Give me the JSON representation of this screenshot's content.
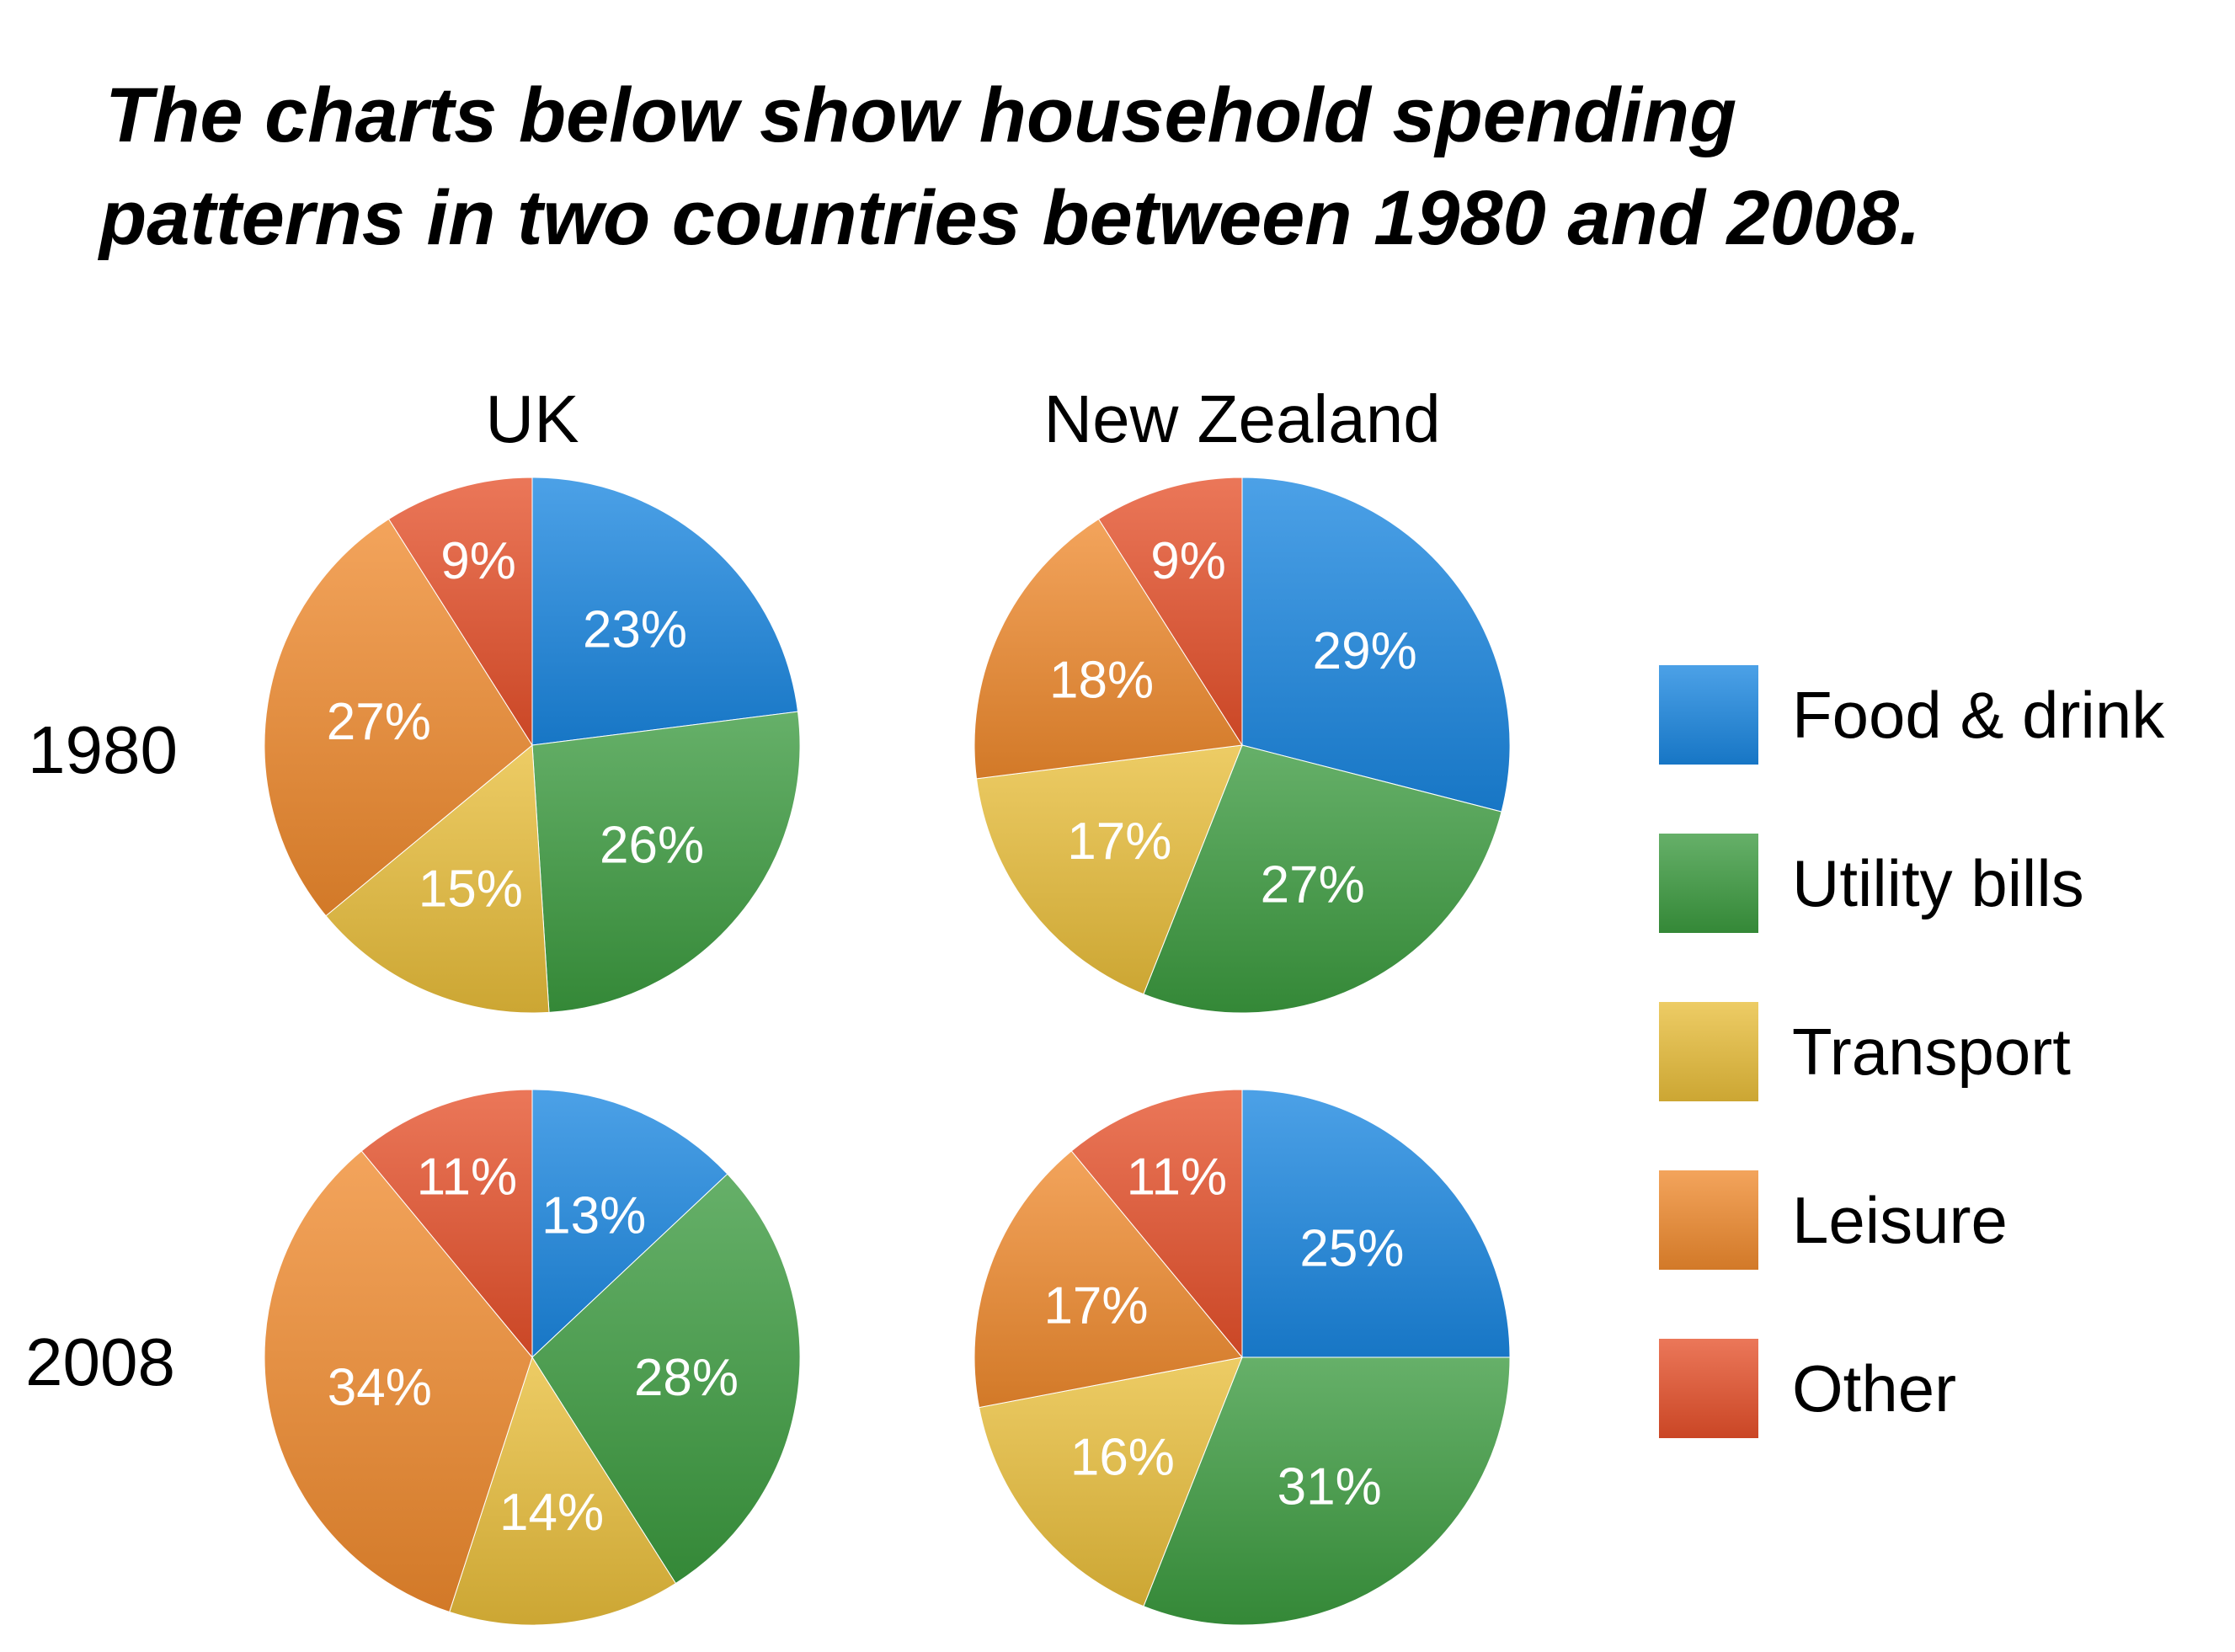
{
  "title": {
    "line1": "The charts below show household spending",
    "line2": "patterns in two countries between 1980 and 2008."
  },
  "categories": [
    "Food & drink",
    "Utility bills",
    "Transport",
    "Leisure",
    "Other"
  ],
  "colors": {
    "Food & drink": "#1a86e0",
    "Utility bills": "#3b9a3f",
    "Transport": "#e8bd3a",
    "Leisure": "#ef8a2e",
    "Other": "#e5502a"
  },
  "col_labels": [
    "UK",
    "New Zealand"
  ],
  "row_labels": [
    "1980",
    "2008"
  ],
  "chart_data": [
    {
      "type": "pie",
      "country": "UK",
      "year": "1980",
      "categories": [
        "Food & drink",
        "Utility bills",
        "Transport",
        "Leisure",
        "Other"
      ],
      "values": [
        23,
        26,
        15,
        27,
        9
      ],
      "labels": [
        "23%",
        "26%",
        "15%",
        "27%",
        "9%"
      ]
    },
    {
      "type": "pie",
      "country": "New Zealand",
      "year": "1980",
      "categories": [
        "Food & drink",
        "Utility bills",
        "Transport",
        "Leisure",
        "Other"
      ],
      "values": [
        29,
        27,
        17,
        18,
        9
      ],
      "labels": [
        "29%",
        "27%",
        "17%",
        "18%",
        "9%"
      ]
    },
    {
      "type": "pie",
      "country": "UK",
      "year": "2008",
      "categories": [
        "Food & drink",
        "Utility bills",
        "Transport",
        "Leisure",
        "Other"
      ],
      "values": [
        13,
        28,
        14,
        34,
        11
      ],
      "labels": [
        "13%",
        "28%",
        "14%",
        "34%",
        "11%"
      ]
    },
    {
      "type": "pie",
      "country": "New Zealand",
      "year": "2008",
      "categories": [
        "Food & drink",
        "Utility bills",
        "Transport",
        "Leisure",
        "Other"
      ],
      "values": [
        25,
        31,
        16,
        17,
        11
      ],
      "labels": [
        "25%",
        "31%",
        "16%",
        "17%",
        "11%"
      ]
    }
  ],
  "legend": [
    {
      "label": "Food & drink",
      "color": "#1a86e0"
    },
    {
      "label": "Utility bills",
      "color": "#3b9a3f"
    },
    {
      "label": "Transport",
      "color": "#e8bd3a"
    },
    {
      "label": "Leisure",
      "color": "#ef8a2e"
    },
    {
      "label": "Other",
      "color": "#e5502a"
    }
  ]
}
